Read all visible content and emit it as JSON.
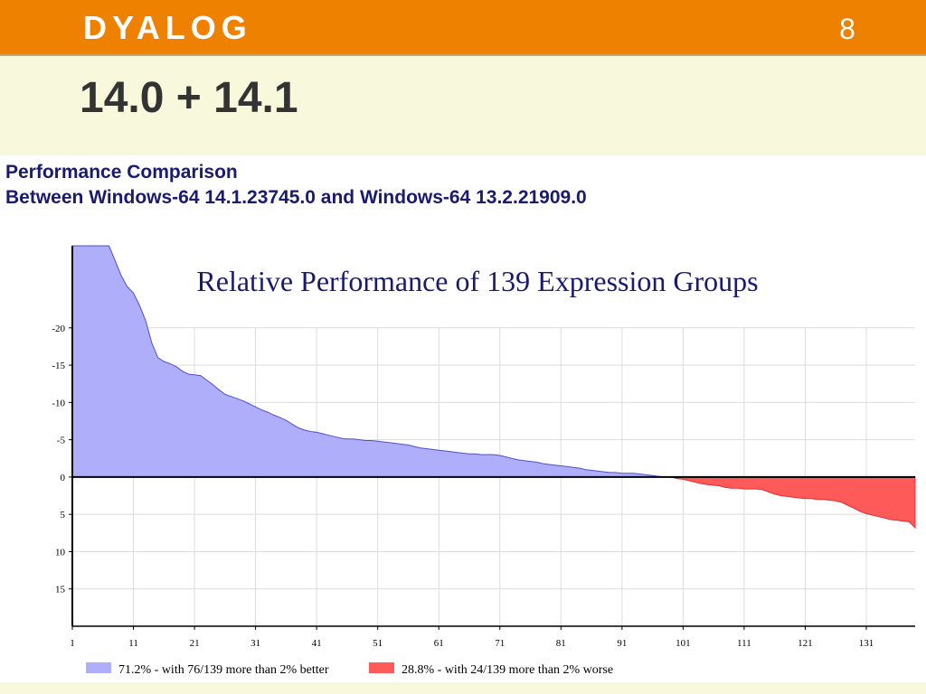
{
  "slide": {
    "logo": "DYALOG",
    "page_number": "8",
    "heading": "14.0 + 14.1",
    "subtitle": [
      "Performance Comparison",
      "Between Windows-64 14.1.23745.0 and Windows-64 13.2.21909.0"
    ]
  },
  "chart_data": {
    "type": "area",
    "title": "Relative Performance of 139 Expression Groups",
    "x": [
      1,
      2,
      3,
      4,
      5,
      6,
      7,
      8,
      9,
      10,
      11,
      12,
      13,
      14,
      15,
      16,
      17,
      18,
      19,
      20,
      21,
      22,
      23,
      24,
      25,
      26,
      27,
      28,
      29,
      30,
      31,
      32,
      33,
      34,
      35,
      36,
      37,
      38,
      39,
      40,
      41,
      42,
      43,
      44,
      45,
      46,
      47,
      48,
      49,
      50,
      51,
      52,
      53,
      54,
      55,
      56,
      57,
      58,
      59,
      60,
      61,
      62,
      63,
      64,
      65,
      66,
      67,
      68,
      69,
      70,
      71,
      72,
      73,
      74,
      75,
      76,
      77,
      78,
      79,
      80,
      81,
      82,
      83,
      84,
      85,
      86,
      87,
      88,
      89,
      90,
      91,
      92,
      93,
      94,
      95,
      96,
      97,
      98,
      99,
      100,
      101,
      102,
      103,
      104,
      105,
      106,
      107,
      108,
      109,
      110,
      111,
      112,
      113,
      114,
      115,
      116,
      117,
      118,
      119,
      120,
      121,
      122,
      123,
      124,
      125,
      126,
      127,
      128,
      129,
      130,
      131,
      132,
      133,
      134,
      135,
      136,
      137,
      138,
      139
    ],
    "series": [
      {
        "values": [
          -31,
          -31,
          -31,
          -31,
          -31,
          -31,
          -31,
          -29,
          -27,
          -25.5,
          -24.7,
          -23,
          -21,
          -18,
          -16,
          -15.5,
          -15.2,
          -14.8,
          -14.2,
          -13.8,
          -13.7,
          -13.6,
          -13,
          -12.4,
          -11.7,
          -11.1,
          -10.8,
          -10.5,
          -10.2,
          -9.8,
          -9.4,
          -9,
          -8.7,
          -8.3,
          -8,
          -7.6,
          -7.1,
          -6.6,
          -6.3,
          -6.1,
          -6,
          -5.8,
          -5.6,
          -5.4,
          -5.2,
          -5.1,
          -5.1,
          -5,
          -4.9,
          -4.9,
          -4.8,
          -4.7,
          -4.6,
          -4.5,
          -4.4,
          -4.3,
          -4.1,
          -3.9,
          -3.8,
          -3.7,
          -3.6,
          -3.5,
          -3.4,
          -3.3,
          -3.2,
          -3.1,
          -3.1,
          -3,
          -3,
          -3,
          -2.9,
          -2.7,
          -2.5,
          -2.3,
          -2.2,
          -2.1,
          -2,
          -1.8,
          -1.7,
          -1.6,
          -1.5,
          -1.4,
          -1.3,
          -1.2,
          -1,
          -0.9,
          -0.8,
          -0.7,
          -0.6,
          -0.6,
          -0.5,
          -0.5,
          -0.5,
          -0.4,
          -0.3,
          -0.2,
          -0.1,
          0,
          0,
          0.2,
          0.3,
          0.5,
          0.7,
          0.9,
          1,
          1.1,
          1.2,
          1.4,
          1.5,
          1.5,
          1.6,
          1.6,
          1.6,
          1.7,
          2,
          2.3,
          2.5,
          2.6,
          2.7,
          2.8,
          2.9,
          2.9,
          3,
          3,
          3.1,
          3.2,
          3.4,
          3.8,
          4.2,
          4.6,
          4.9,
          5.1,
          5.3,
          5.5,
          5.7,
          5.8,
          5.9,
          6,
          6.8
        ]
      }
    ],
    "legend": [
      {
        "label": "71.2% - with 76/139 more than 2% better",
        "color": "#aeaefa"
      },
      {
        "label": "28.8% - with 24/139 more than 2% worse",
        "color": "#ff5a5a"
      }
    ],
    "xlim": [
      1,
      139
    ],
    "xticks": [
      1,
      11,
      21,
      31,
      41,
      51,
      61,
      71,
      81,
      91,
      101,
      111,
      121,
      131
    ],
    "ylim": [
      20,
      -31
    ],
    "yticks": [
      -20,
      -15,
      -10,
      -5,
      0,
      5,
      10,
      15
    ],
    "grid": true
  }
}
